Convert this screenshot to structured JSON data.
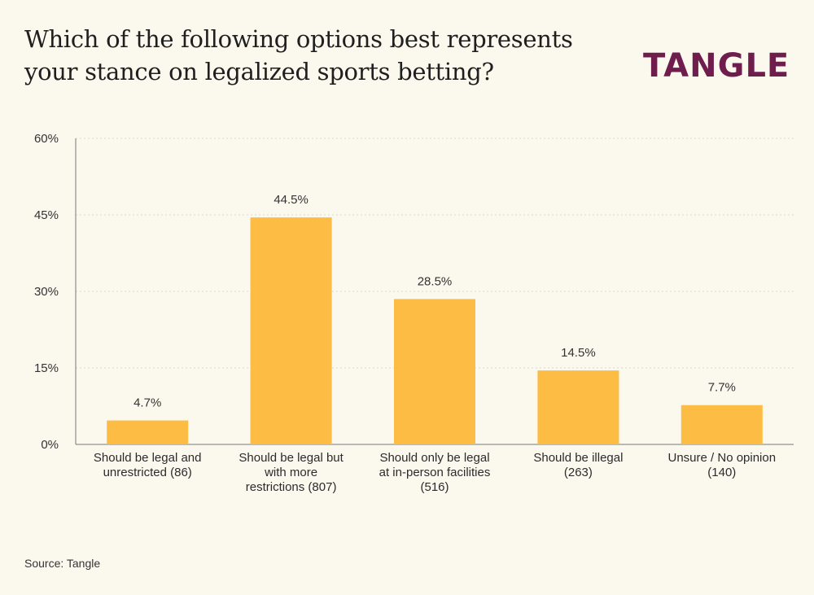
{
  "title": "Which of the following options best represents your stance on legalized sports betting?",
  "logo": "TANGLE",
  "source": "Source: Tangle",
  "colors": {
    "bar": "#fdbd45",
    "background": "#fbf8ee",
    "brand": "#6e1d4d"
  },
  "chart_data": {
    "type": "bar",
    "categories": [
      [
        "Should be legal and",
        "unrestricted (86)"
      ],
      [
        "Should be legal but",
        "with more",
        "restrictions (807)"
      ],
      [
        "Should only be legal",
        "at in-person facilities",
        "(516)"
      ],
      [
        "Should be illegal",
        "(263)"
      ],
      [
        "Unsure / No opinion",
        "(140)"
      ]
    ],
    "values": [
      4.7,
      44.5,
      28.5,
      14.5,
      7.7
    ],
    "data_labels": [
      "4.7%",
      "44.5%",
      "28.5%",
      "14.5%",
      "7.7%"
    ],
    "yticks": [
      0,
      15,
      30,
      45,
      60
    ],
    "ytick_labels": [
      "0%",
      "15%",
      "30%",
      "45%",
      "60%"
    ],
    "ylim": [
      0,
      60
    ],
    "grid": true
  }
}
